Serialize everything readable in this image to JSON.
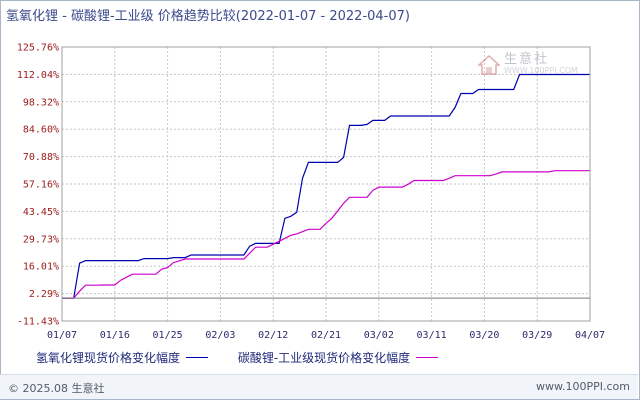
{
  "title": "氢氧化锂 - 碳酸锂-工业级 价格趋势比较(2022-01-07 - 2022-04-07)",
  "footer": {
    "copyright": "© 2025.08 生意社",
    "site": "www.100PPI.com"
  },
  "watermark": {
    "name": "生意社",
    "url": "WWW.100PPI.COM",
    "icon": "house-logo-icon"
  },
  "colors": {
    "series1": "#0000b0",
    "series2": "#cc00cc",
    "grid": "#c8c8c8",
    "axis": "#a0a0a0"
  },
  "chart_data": {
    "type": "line",
    "title": "氢氧化锂 - 碳酸锂-工业级 价格趋势比较(2022-01-07 - 2022-04-07)",
    "xlabel": "",
    "ylabel": "",
    "x_ticks": [
      "01/07",
      "01/16",
      "01/25",
      "02/03",
      "02/12",
      "02/21",
      "03/02",
      "03/11",
      "03/20",
      "03/29",
      "04/07"
    ],
    "y_ticks": [
      "125.76%",
      "112.04%",
      "98.32%",
      "84.60%",
      "70.88%",
      "57.16%",
      "43.45%",
      "29.73%",
      "16.01%",
      "2.29%",
      "-11.43%"
    ],
    "ylim": [
      -11.43,
      125.76
    ],
    "xlim": [
      "2022-01-07",
      "2022-04-07"
    ],
    "grid": true,
    "legend_position": "bottom",
    "series": [
      {
        "name": "氢氧化锂现货价格变化幅度",
        "color": "#0000b0",
        "points": [
          [
            "2022-01-07",
            0.0
          ],
          [
            "2022-01-08",
            0.0
          ],
          [
            "2022-01-09",
            0.0
          ],
          [
            "2022-01-10",
            17.5
          ],
          [
            "2022-01-11",
            18.8
          ],
          [
            "2022-01-20",
            18.8
          ],
          [
            "2022-01-21",
            19.8
          ],
          [
            "2022-01-25",
            19.8
          ],
          [
            "2022-01-26",
            20.3
          ],
          [
            "2022-01-28",
            20.3
          ],
          [
            "2022-01-29",
            21.6
          ],
          [
            "2022-02-07",
            21.6
          ],
          [
            "2022-02-08",
            26.0
          ],
          [
            "2022-02-09",
            27.4
          ],
          [
            "2022-02-13",
            27.4
          ],
          [
            "2022-02-14",
            40.0
          ],
          [
            "2022-02-15",
            41.0
          ],
          [
            "2022-02-16",
            43.0
          ],
          [
            "2022-02-17",
            60.0
          ],
          [
            "2022-02-18",
            68.0
          ],
          [
            "2022-02-23",
            68.0
          ],
          [
            "2022-02-24",
            70.5
          ],
          [
            "2022-02-25",
            86.5
          ],
          [
            "2022-02-27",
            86.5
          ],
          [
            "2022-02-28",
            87.0
          ],
          [
            "2022-03-01",
            89.0
          ],
          [
            "2022-03-03",
            89.0
          ],
          [
            "2022-03-04",
            91.2
          ],
          [
            "2022-03-14",
            91.2
          ],
          [
            "2022-03-15",
            95.5
          ],
          [
            "2022-03-16",
            102.5
          ],
          [
            "2022-03-18",
            102.5
          ],
          [
            "2022-03-19",
            104.5
          ],
          [
            "2022-03-25",
            104.5
          ],
          [
            "2022-03-26",
            112.0
          ],
          [
            "2022-04-07",
            112.0
          ]
        ]
      },
      {
        "name": "碳酸锂-工业级现货价格变化幅度",
        "color": "#cc00cc",
        "points": [
          [
            "2022-01-07",
            0.0
          ],
          [
            "2022-01-08",
            0.0
          ],
          [
            "2022-01-09",
            0.0
          ],
          [
            "2022-01-10",
            3.5
          ],
          [
            "2022-01-11",
            6.5
          ],
          [
            "2022-01-13",
            6.5
          ],
          [
            "2022-01-14",
            6.6
          ],
          [
            "2022-01-16",
            6.6
          ],
          [
            "2022-01-17",
            9.0
          ],
          [
            "2022-01-19",
            12.0
          ],
          [
            "2022-01-23",
            12.0
          ],
          [
            "2022-01-24",
            14.5
          ],
          [
            "2022-01-25",
            15.3
          ],
          [
            "2022-01-26",
            17.8
          ],
          [
            "2022-01-28",
            19.6
          ],
          [
            "2022-02-07",
            19.6
          ],
          [
            "2022-02-08",
            22.5
          ],
          [
            "2022-02-09",
            25.5
          ],
          [
            "2022-02-11",
            25.5
          ],
          [
            "2022-02-12",
            27.0
          ],
          [
            "2022-02-13",
            28.5
          ],
          [
            "2022-02-15",
            31.5
          ],
          [
            "2022-02-16",
            32.2
          ],
          [
            "2022-02-18",
            34.5
          ],
          [
            "2022-02-20",
            34.5
          ],
          [
            "2022-02-21",
            37.5
          ],
          [
            "2022-02-22",
            40.0
          ],
          [
            "2022-02-24",
            47.5
          ],
          [
            "2022-02-25",
            50.5
          ],
          [
            "2022-02-28",
            50.5
          ],
          [
            "2022-03-01",
            54.0
          ],
          [
            "2022-03-02",
            55.6
          ],
          [
            "2022-03-06",
            55.6
          ],
          [
            "2022-03-07",
            57.0
          ],
          [
            "2022-03-08",
            58.9
          ],
          [
            "2022-03-13",
            58.9
          ],
          [
            "2022-03-14",
            60.0
          ],
          [
            "2022-03-15",
            61.3
          ],
          [
            "2022-03-21",
            61.3
          ],
          [
            "2022-03-22",
            62.2
          ],
          [
            "2022-03-23",
            63.2
          ],
          [
            "2022-03-31",
            63.2
          ],
          [
            "2022-04-01",
            63.8
          ],
          [
            "2022-04-07",
            63.8
          ]
        ]
      }
    ]
  }
}
